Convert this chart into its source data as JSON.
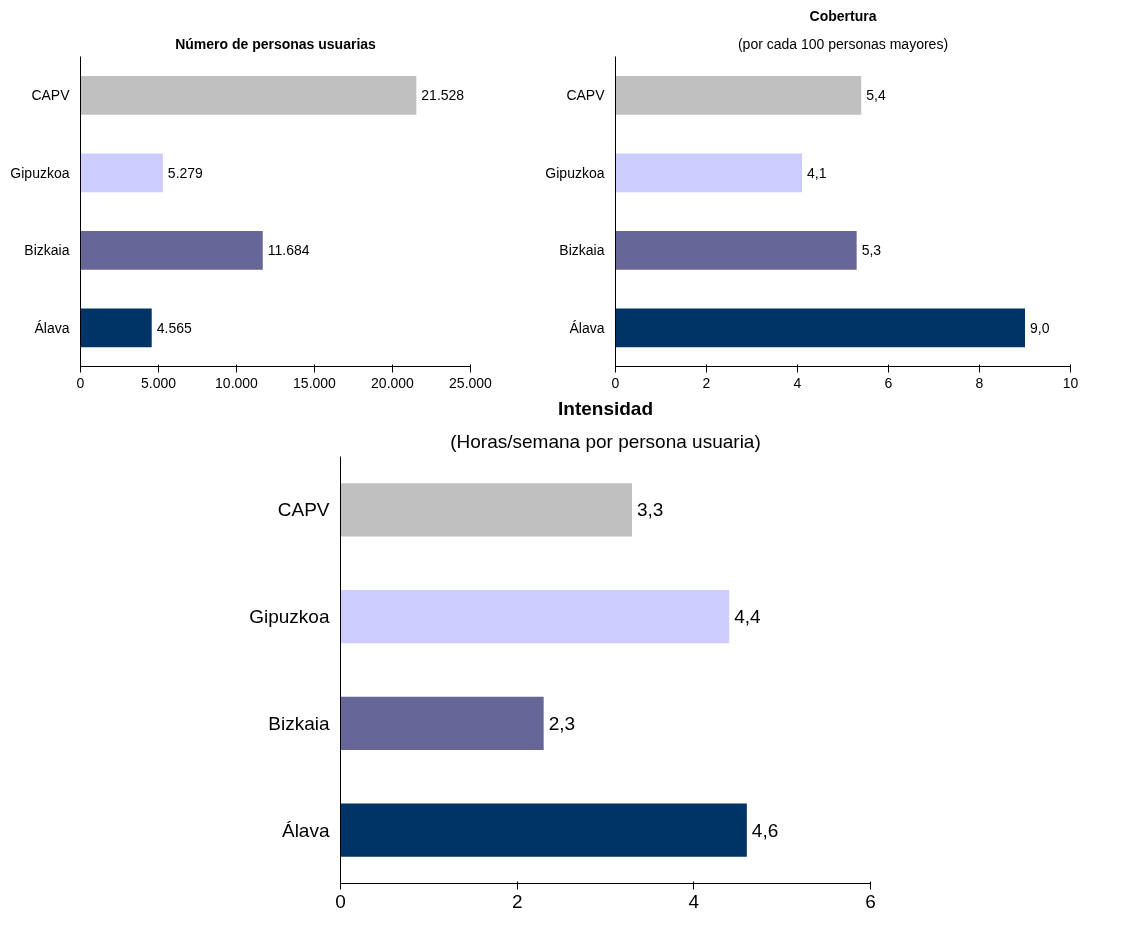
{
  "chart_data": [
    {
      "type": "bar",
      "orientation": "horizontal",
      "title": "Número de personas usuarias",
      "categories": [
        "CAPV",
        "Gipuzkoa",
        "Bizkaia",
        "Álava"
      ],
      "values": [
        21528,
        5279,
        11684,
        4565
      ],
      "colors": [
        "#c0c0c0",
        "#ccccff",
        "#666699",
        "#003366"
      ],
      "value_labels": [
        "21.528",
        "5.279",
        "11.684",
        "4.565"
      ],
      "xlim": [
        0,
        25000
      ],
      "xticks": [
        0,
        {
          "value": 5000,
          "label": "5.000"
        },
        {
          "value": 10000,
          "label": "10.000"
        },
        {
          "value": 15000,
          "label": "15.000"
        },
        {
          "value": 20000,
          "label": "20.000"
        },
        {
          "value": 25000,
          "label": "25.000"
        }
      ],
      "grid": false
    },
    {
      "type": "bar",
      "orientation": "horizontal",
      "title": "Cobertura",
      "subtitle": "(por cada 100 personas mayores)",
      "categories": [
        "CAPV",
        "Gipuzkoa",
        "Bizkaia",
        "Álava"
      ],
      "values": [
        5.4,
        4.1,
        5.3,
        9.0
      ],
      "colors": [
        "#c0c0c0",
        "#ccccff",
        "#666699",
        "#003366"
      ],
      "value_labels": [
        "5,4",
        "4,1",
        "5,3",
        "9,0"
      ],
      "xlim": [
        0,
        10
      ],
      "xticks": [
        0,
        2,
        4,
        6,
        8,
        10
      ],
      "grid": false
    },
    {
      "type": "bar",
      "orientation": "horizontal",
      "title": "Intensidad",
      "subtitle": "(Horas/semana por persona usuaria)",
      "categories": [
        "CAPV",
        "Gipuzkoa",
        "Bizkaia",
        "Álava"
      ],
      "values": [
        3.3,
        4.4,
        2.3,
        4.6
      ],
      "colors": [
        "#c0c0c0",
        "#ccccff",
        "#666699",
        "#003366"
      ],
      "value_labels": [
        "3,3",
        "4,4",
        "2,3",
        "4,6"
      ],
      "xlim": [
        0,
        6
      ],
      "xticks": [
        0,
        2,
        4,
        6
      ],
      "grid": false
    }
  ]
}
